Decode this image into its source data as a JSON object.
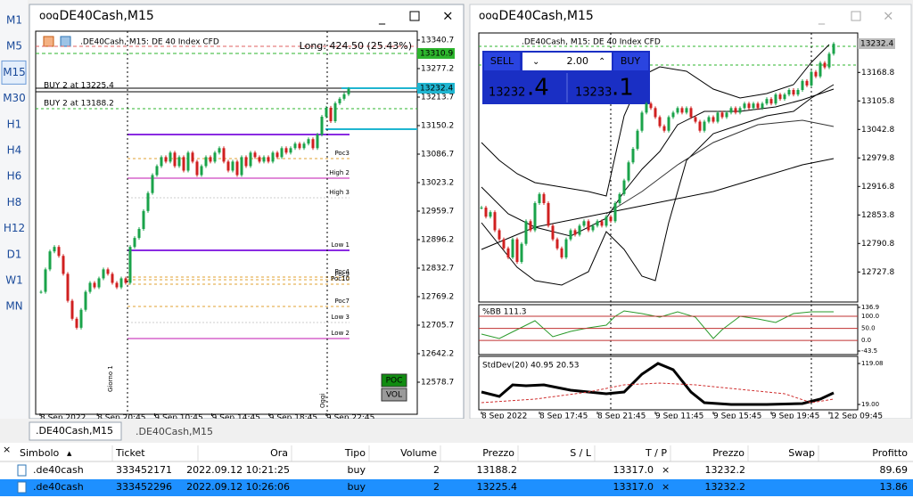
{
  "toolbar": {
    "timeframes": [
      "M1",
      "M5",
      "M15",
      "M30",
      "H1",
      "H4",
      "H6",
      "H8",
      "H12",
      "D1",
      "W1",
      "MN"
    ],
    "selected": 2
  },
  "left_window": {
    "title": ".DE40Cash,M15",
    "header": ".DE40Cash, M15:  DE 40 Index CFD",
    "long_label": "Long: 424.50 (25.43%)",
    "orders": [
      "BUY 2 at 13225.4",
      "BUY 2 at 13188.2"
    ],
    "levels": [
      "Poc3",
      "High 2",
      "High 3",
      "Low 1",
      "Poc4",
      "Poc9",
      "Poc10",
      "Poc7",
      "Low 3",
      "Low 2"
    ],
    "session_labels": [
      "Giorno 1",
      "Oggi"
    ],
    "buttons": [
      "POC",
      "VOL"
    ],
    "price_boxes": [
      "13310.9",
      "13232.4"
    ]
  },
  "right_window": {
    "title": ".DE40Cash,M15",
    "header": ".DE40Cash, M15:  DE 40 Index CFD",
    "trade_panel": {
      "sell": "SELL",
      "lot": "2.00",
      "buy": "BUY",
      "bid_main": "13232",
      "bid_frac": ".4",
      "ask_main": "13233",
      "ask_frac": ".1"
    },
    "price_box": "13232.4"
  },
  "chart_data": [
    {
      "type": "candlestick",
      "closes": [
        12780,
        12830,
        12870,
        12880,
        12860,
        12820,
        12760,
        12720,
        12700,
        12740,
        12780,
        12800,
        12790,
        12810,
        12830,
        12820,
        12800,
        12790,
        12810,
        12800,
        12880,
        12900,
        12920,
        12960,
        13000,
        13040,
        13060,
        13080,
        13070,
        13090,
        13060,
        13080,
        13050,
        13090,
        13070,
        13040,
        13060,
        13080,
        13070,
        13090,
        13100,
        13070,
        13050,
        13070,
        13040,
        13080,
        13060,
        13090,
        13080,
        13070,
        13080,
        13070,
        13090,
        13080,
        13100,
        13090,
        13100,
        13110,
        13100,
        13110,
        13120,
        13100,
        13130,
        13170,
        13190,
        13160,
        13200,
        13210,
        13220,
        13232
      ],
      "ylim": [
        12507.3,
        13360.5
      ],
      "yticks": [
        13340.7,
        13277.2,
        13213.7,
        13150.2,
        13086.7,
        13023.2,
        12959.7,
        12896.2,
        12832.7,
        12769.2,
        12705.7,
        12642.2,
        12578.7
      ],
      "xticks": [
        "8 Sep 2022",
        "8 Sep 20:45",
        "9 Sep 10:45",
        "9 Sep 14:45",
        "9 Sep 18:45",
        "9 Sep 22:45"
      ]
    },
    {
      "type": "candlestick",
      "closes": [
        12870,
        12850,
        12860,
        12820,
        12800,
        12780,
        12760,
        12800,
        12750,
        12790,
        12840,
        12820,
        12880,
        12900,
        12880,
        12830,
        12800,
        12780,
        12760,
        12800,
        12820,
        12810,
        12830,
        12840,
        12820,
        12830,
        12840,
        12830,
        12850,
        12840,
        12880,
        12900,
        12930,
        12970,
        13000,
        13040,
        13080,
        13100,
        13090,
        13070,
        13050,
        13040,
        13070,
        13080,
        13090,
        13080,
        13090,
        13070,
        13060,
        13040,
        13060,
        13070,
        13060,
        13080,
        13070,
        13080,
        13090,
        13080,
        13090,
        13100,
        13090,
        13100,
        13090,
        13100,
        13110,
        13100,
        13120,
        13110,
        13120,
        13130,
        13120,
        13130,
        13150,
        13140,
        13170,
        13160,
        13190,
        13180,
        13210,
        13232
      ],
      "ylim": [
        12663.4,
        13256
      ],
      "yticks": [
        13168.8,
        13105.8,
        13042.8,
        12979.8,
        12916.8,
        12853.8,
        12790.8,
        12727.8
      ],
      "xticks": [
        "8 Sep 2022",
        "8 Sep 17:45",
        "8 Sep 21:45",
        "9 Sep 11:45",
        "9 Sep 15:45",
        "9 Sep 19:45",
        "12 Sep 09:45"
      ],
      "indicators": [
        {
          "label": "%BB 111.3",
          "ylim": [
            -43.5,
            136.9
          ],
          "yticks": [
            136.9,
            {
              "value": 100,
              "label": "100.0"
            },
            {
              "value": 50,
              "label": "50.0"
            },
            {
              "value": 0,
              "label": "0.0"
            },
            -43.5
          ]
        },
        {
          "label": "StdDev(20) 40.95 20.53",
          "ylim": [
            19,
            119.08
          ],
          "yticks": [
            119.08,
            {
              "value": 19,
              "label": "19.00"
            }
          ]
        }
      ]
    }
  ],
  "tabs": [
    ".DE40Cash,M15",
    ".DE40Cash,M15"
  ],
  "table": {
    "columns": [
      "Simbolo",
      "Ticket",
      "Ora",
      "Tipo",
      "Volume",
      "Prezzo",
      "S / L",
      "T / P",
      "Prezzo",
      "Swap",
      "Profitto"
    ],
    "rows": [
      {
        "symbol": ".de40cash",
        "ticket": "333452171",
        "time": "2022.09.12 10:21:25",
        "type": "buy",
        "volume": "2",
        "price": "13188.2",
        "tp": "13317.0",
        "current": "13232.2",
        "profit": "89.69"
      },
      {
        "symbol": ".de40cash",
        "ticket": "333452296",
        "time": "2022.09.12 10:26:06",
        "type": "buy",
        "volume": "2",
        "price": "13225.4",
        "tp": "13317.0",
        "current": "13232.2",
        "profit": "13.86"
      }
    ]
  }
}
